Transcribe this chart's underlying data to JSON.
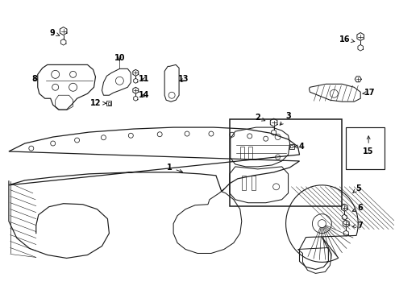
{
  "bg_color": "#ffffff",
  "line_color": "#1a1a1a",
  "label_color": "#000000",
  "figsize": [
    4.9,
    3.6
  ],
  "dpi": 100,
  "xlim": [
    0,
    490
  ],
  "ylim": [
    360,
    0
  ]
}
